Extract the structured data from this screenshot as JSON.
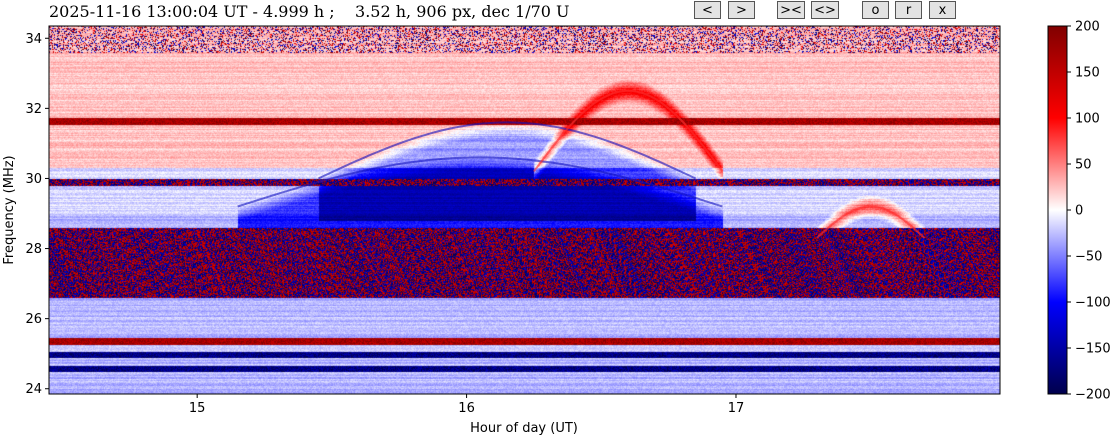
{
  "title": "2025-11-16 13:00:04 UT - 4.999 h ;    3.52 h, 906 px, dec 1/70 U",
  "buttons": {
    "prev": "<",
    "next": ">",
    "narrow": "><",
    "widen": "<>",
    "o": "o",
    "r": "r",
    "x": "x"
  },
  "chart_data": {
    "type": "heatmap",
    "xlabel": "Hour of day (UT)",
    "ylabel": "Frequency (MHz)",
    "xlim": [
      14.45,
      17.98
    ],
    "ylim": [
      23.85,
      34.35
    ],
    "xticks": [
      15,
      16,
      17
    ],
    "yticks": [
      24,
      26,
      28,
      30,
      32,
      34
    ],
    "colorbar": {
      "colormap": "seismic",
      "range": [
        -200,
        200
      ],
      "ticks": [
        200,
        150,
        100,
        50,
        0,
        -50,
        -100,
        -150,
        -200
      ],
      "tick_labels": [
        "200",
        "150",
        "100",
        "50",
        "0",
        "−50",
        "−100",
        "−150",
        "−200"
      ]
    },
    "features": [
      {
        "kind": "arc",
        "x_start": 15.45,
        "x_end": 16.85,
        "y_base": 30.0,
        "y_peak": 31.6,
        "sign": "negative"
      },
      {
        "kind": "arc",
        "x_start": 15.15,
        "x_end": 16.95,
        "y_base": 29.2,
        "y_peak": 30.6,
        "sign": "negative"
      },
      {
        "kind": "arc",
        "x_start": 16.25,
        "x_end": 16.95,
        "y_base": 30.2,
        "y_peak": 32.5,
        "sign": "positive"
      },
      {
        "kind": "arc",
        "x_start": 17.3,
        "x_end": 17.7,
        "y_base": 28.3,
        "y_peak": 29.2,
        "sign": "positive"
      },
      {
        "kind": "band",
        "y_min": 31.55,
        "y_max": 31.75,
        "sign": "positive"
      },
      {
        "kind": "band",
        "y_min": 29.8,
        "y_max": 30.0,
        "sign": "mixed"
      },
      {
        "kind": "band",
        "y_min": 26.6,
        "y_max": 28.6,
        "sign": "mixed"
      },
      {
        "kind": "band",
        "y_min": 25.25,
        "y_max": 25.45,
        "sign": "positive"
      },
      {
        "kind": "band",
        "y_min": 24.9,
        "y_max": 25.05,
        "sign": "negative"
      },
      {
        "kind": "band",
        "y_min": 24.5,
        "y_max": 24.65,
        "sign": "negative"
      }
    ]
  }
}
